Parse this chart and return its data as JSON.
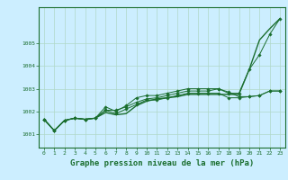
{
  "background_color": "#cceeff",
  "plot_bg_color": "#cceeff",
  "grid_color": "#b0d8c8",
  "line_color": "#1a6e2e",
  "xlabel": "Graphe pression niveau de la mer (hPa)",
  "xlabel_fontsize": 6.5,
  "ylim": [
    1000.4,
    1006.6
  ],
  "xlim": [
    -0.5,
    23.5
  ],
  "yticks": [
    1001,
    1002,
    1003,
    1004,
    1005
  ],
  "xticks": [
    0,
    1,
    2,
    3,
    4,
    5,
    6,
    7,
    8,
    9,
    10,
    11,
    12,
    13,
    14,
    15,
    16,
    17,
    18,
    19,
    20,
    21,
    22,
    23
  ],
  "series": [
    [
      1001.65,
      1001.15,
      1001.6,
      1001.7,
      1001.65,
      1001.7,
      1001.95,
      1001.85,
      1001.9,
      1002.25,
      1002.45,
      1002.55,
      1002.6,
      1002.65,
      1002.75,
      1002.75,
      1002.75,
      1002.75,
      1002.75,
      1002.75,
      1003.85,
      1005.15,
      1005.65,
      1006.1
    ],
    [
      1001.65,
      1001.15,
      1001.6,
      1001.7,
      1001.65,
      1001.7,
      1002.05,
      1002.05,
      1002.2,
      1002.4,
      1002.55,
      1002.6,
      1002.7,
      1002.8,
      1002.9,
      1002.9,
      1002.9,
      1003.0,
      1002.85,
      1002.65,
      1002.65,
      1002.7,
      1002.9,
      1002.9
    ],
    [
      1001.65,
      1001.15,
      1001.6,
      1001.7,
      1001.65,
      1001.7,
      1002.05,
      1001.9,
      1002.1,
      1002.3,
      1002.5,
      1002.5,
      1002.6,
      1002.7,
      1002.8,
      1002.8,
      1002.8,
      1002.8,
      1002.6,
      1002.6,
      1002.65,
      1002.7,
      1002.9,
      1002.9
    ],
    [
      1001.65,
      1001.15,
      1001.6,
      1001.7,
      1001.65,
      1001.7,
      1002.2,
      1002.0,
      1002.25,
      1002.6,
      1002.7,
      1002.7,
      1002.8,
      1002.9,
      1003.0,
      1003.0,
      1003.0,
      1003.0,
      1002.8,
      1002.8,
      1003.85,
      1004.5,
      1005.4,
      1006.1
    ]
  ],
  "markers": [
    null,
    "D",
    "D",
    "D"
  ],
  "markersize": [
    0,
    1.8,
    1.8,
    1.8
  ],
  "linewidths": [
    1.0,
    0.7,
    0.7,
    0.7
  ]
}
